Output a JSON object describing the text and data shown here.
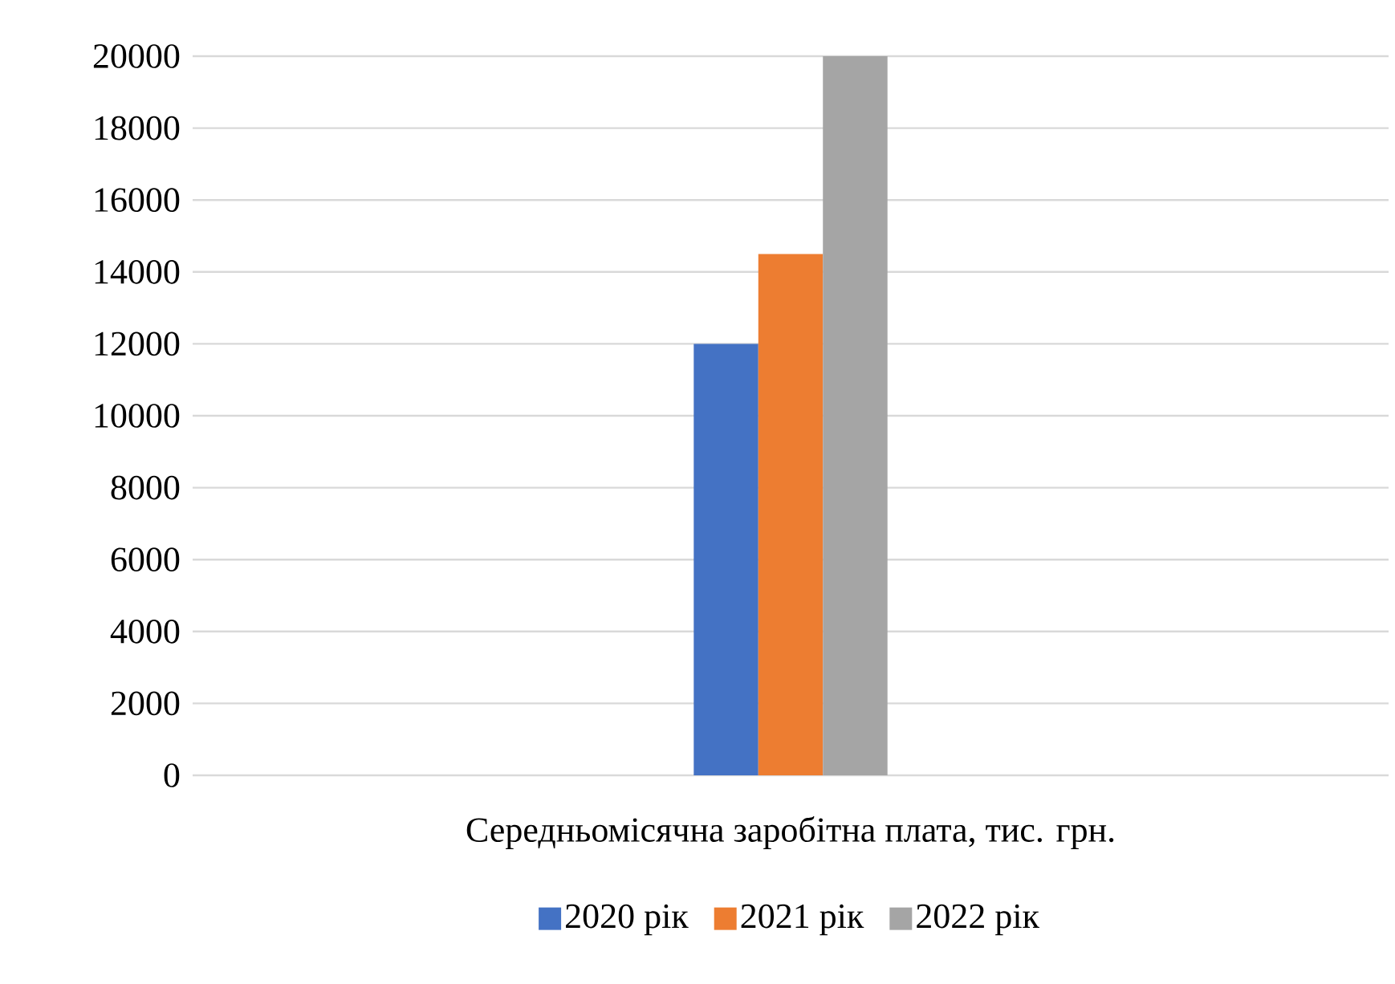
{
  "chart_data": {
    "type": "bar",
    "categories": [
      "Середньомісячна заробітна плата, тис. грн."
    ],
    "series": [
      {
        "name": "2020 рік",
        "color": "#4472c4",
        "values": [
          12000
        ]
      },
      {
        "name": "2021 рік",
        "color": "#ed7d31",
        "values": [
          14500
        ]
      },
      {
        "name": "2022 рік",
        "color": "#a5a5a5",
        "values": [
          20000
        ]
      }
    ],
    "ylim": [
      0,
      20000
    ],
    "yticks": [
      0,
      2000,
      4000,
      6000,
      8000,
      10000,
      12000,
      14000,
      16000,
      18000,
      20000
    ],
    "grid": "y",
    "legend": "bottom"
  }
}
